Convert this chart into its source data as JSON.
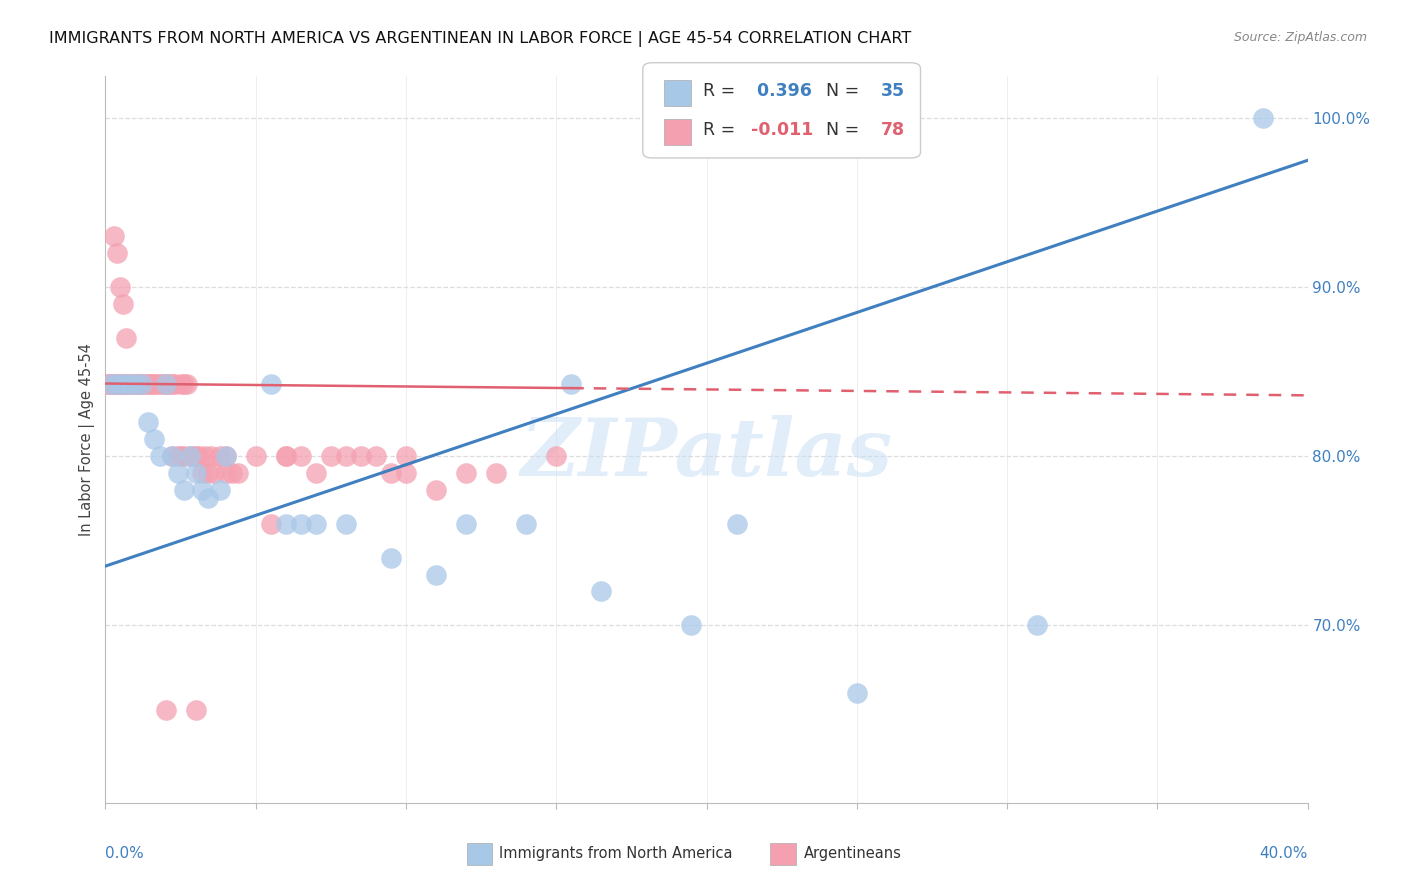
{
  "title": "IMMIGRANTS FROM NORTH AMERICA VS ARGENTINEAN IN LABOR FORCE | AGE 45-54 CORRELATION CHART",
  "source": "Source: ZipAtlas.com",
  "ylabel": "In Labor Force | Age 45-54",
  "r_blue": 0.396,
  "n_blue": 35,
  "r_pink": -0.011,
  "n_pink": 78,
  "blue_color": "#a8c8e8",
  "pink_color": "#f4a0b0",
  "blue_line_color": "#4080c0",
  "pink_line_color": "#e06070",
  "watermark": "ZIPatlas",
  "blue_scatter": [
    [
      0.002,
      0.843
    ],
    [
      0.004,
      0.843
    ],
    [
      0.006,
      0.843
    ],
    [
      0.008,
      0.843
    ],
    [
      0.01,
      0.843
    ],
    [
      0.012,
      0.843
    ],
    [
      0.014,
      0.82
    ],
    [
      0.016,
      0.81
    ],
    [
      0.018,
      0.8
    ],
    [
      0.02,
      0.843
    ],
    [
      0.022,
      0.8
    ],
    [
      0.024,
      0.79
    ],
    [
      0.026,
      0.78
    ],
    [
      0.028,
      0.8
    ],
    [
      0.03,
      0.79
    ],
    [
      0.032,
      0.78
    ],
    [
      0.034,
      0.775
    ],
    [
      0.038,
      0.78
    ],
    [
      0.04,
      0.8
    ],
    [
      0.055,
      0.843
    ],
    [
      0.06,
      0.76
    ],
    [
      0.065,
      0.76
    ],
    [
      0.07,
      0.76
    ],
    [
      0.08,
      0.76
    ],
    [
      0.095,
      0.74
    ],
    [
      0.11,
      0.73
    ],
    [
      0.12,
      0.76
    ],
    [
      0.14,
      0.76
    ],
    [
      0.155,
      0.843
    ],
    [
      0.165,
      0.72
    ],
    [
      0.195,
      0.7
    ],
    [
      0.21,
      0.76
    ],
    [
      0.25,
      0.66
    ],
    [
      0.31,
      0.7
    ],
    [
      0.385,
      1.0
    ]
  ],
  "pink_scatter": [
    [
      0.001,
      0.843
    ],
    [
      0.001,
      0.843
    ],
    [
      0.002,
      0.843
    ],
    [
      0.002,
      0.843
    ],
    [
      0.003,
      0.843
    ],
    [
      0.003,
      0.93
    ],
    [
      0.004,
      0.843
    ],
    [
      0.004,
      0.843
    ],
    [
      0.004,
      0.92
    ],
    [
      0.005,
      0.843
    ],
    [
      0.005,
      0.843
    ],
    [
      0.005,
      0.9
    ],
    [
      0.006,
      0.843
    ],
    [
      0.006,
      0.89
    ],
    [
      0.006,
      0.843
    ],
    [
      0.007,
      0.843
    ],
    [
      0.007,
      0.87
    ],
    [
      0.008,
      0.843
    ],
    [
      0.008,
      0.843
    ],
    [
      0.009,
      0.843
    ],
    [
      0.01,
      0.843
    ],
    [
      0.01,
      0.843
    ],
    [
      0.011,
      0.843
    ],
    [
      0.012,
      0.843
    ],
    [
      0.012,
      0.843
    ],
    [
      0.013,
      0.843
    ],
    [
      0.014,
      0.843
    ],
    [
      0.015,
      0.843
    ],
    [
      0.015,
      0.843
    ],
    [
      0.016,
      0.843
    ],
    [
      0.017,
      0.843
    ],
    [
      0.018,
      0.843
    ],
    [
      0.019,
      0.843
    ],
    [
      0.02,
      0.843
    ],
    [
      0.02,
      0.843
    ],
    [
      0.021,
      0.843
    ],
    [
      0.022,
      0.843
    ],
    [
      0.022,
      0.8
    ],
    [
      0.023,
      0.843
    ],
    [
      0.024,
      0.8
    ],
    [
      0.025,
      0.843
    ],
    [
      0.025,
      0.8
    ],
    [
      0.026,
      0.843
    ],
    [
      0.026,
      0.8
    ],
    [
      0.027,
      0.843
    ],
    [
      0.028,
      0.8
    ],
    [
      0.029,
      0.8
    ],
    [
      0.03,
      0.8
    ],
    [
      0.031,
      0.8
    ],
    [
      0.032,
      0.79
    ],
    [
      0.033,
      0.8
    ],
    [
      0.034,
      0.79
    ],
    [
      0.035,
      0.8
    ],
    [
      0.036,
      0.79
    ],
    [
      0.038,
      0.8
    ],
    [
      0.04,
      0.79
    ],
    [
      0.042,
      0.79
    ],
    [
      0.044,
      0.79
    ],
    [
      0.05,
      0.8
    ],
    [
      0.055,
      0.76
    ],
    [
      0.06,
      0.8
    ],
    [
      0.065,
      0.8
    ],
    [
      0.07,
      0.79
    ],
    [
      0.075,
      0.8
    ],
    [
      0.08,
      0.8
    ],
    [
      0.085,
      0.8
    ],
    [
      0.09,
      0.8
    ],
    [
      0.095,
      0.79
    ],
    [
      0.1,
      0.79
    ],
    [
      0.11,
      0.78
    ],
    [
      0.06,
      0.8
    ],
    [
      0.1,
      0.8
    ],
    [
      0.12,
      0.79
    ],
    [
      0.13,
      0.79
    ],
    [
      0.15,
      0.8
    ],
    [
      0.04,
      0.8
    ],
    [
      0.02,
      0.65
    ],
    [
      0.03,
      0.65
    ]
  ],
  "xmin": 0.0,
  "xmax": 0.4,
  "ymin": 0.595,
  "ymax": 1.025,
  "yticks": [
    0.7,
    0.8,
    0.9,
    1.0
  ],
  "grid_color": "#dddddd",
  "background_color": "#ffffff",
  "blue_trend_x": [
    0.0,
    0.4
  ],
  "blue_trend_y": [
    0.735,
    0.975
  ],
  "pink_trend_x": [
    0.0,
    0.4
  ],
  "pink_trend_y": [
    0.843,
    0.836
  ]
}
